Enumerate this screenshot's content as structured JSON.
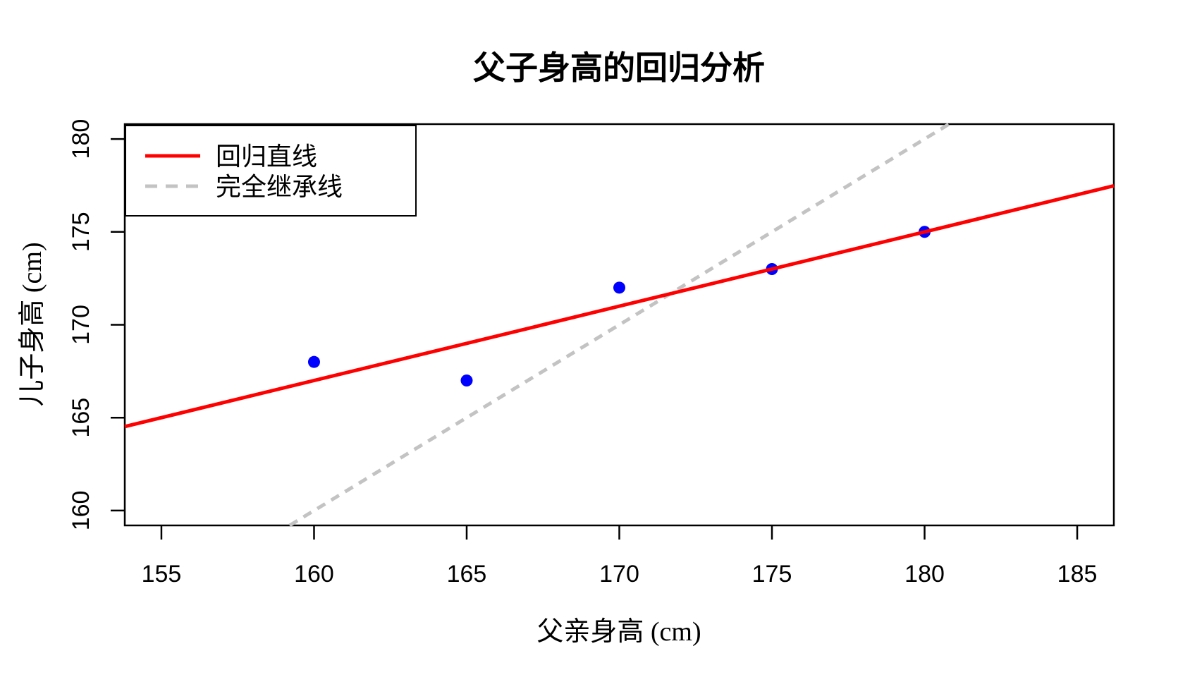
{
  "chart_data": {
    "type": "scatter",
    "title": "父子身高的回归分析",
    "xlabel": "父亲身高 (cm)",
    "ylabel": "儿子身高 (cm)",
    "x": [
      160,
      165,
      170,
      175,
      180
    ],
    "y": [
      168,
      167,
      172,
      173,
      175
    ],
    "xticks": [
      155,
      160,
      165,
      170,
      175,
      180,
      185
    ],
    "yticks": [
      160,
      165,
      170,
      175,
      180
    ],
    "xlim": [
      153.8,
      186.2
    ],
    "ylim": [
      159.2,
      180.8
    ],
    "grid": false,
    "background": "#FFFFFF",
    "axis_color": "#000000",
    "point_color": "#0000FF",
    "legend_position": "topleft",
    "lines": [
      {
        "name": "回归直线",
        "slope": 0.4,
        "intercept": 103,
        "color": "#FF0000",
        "style": "solid"
      },
      {
        "name": "完全继承线",
        "slope": 1,
        "intercept": 0,
        "color": "#C3C3C3",
        "style": "dashed"
      }
    ]
  }
}
